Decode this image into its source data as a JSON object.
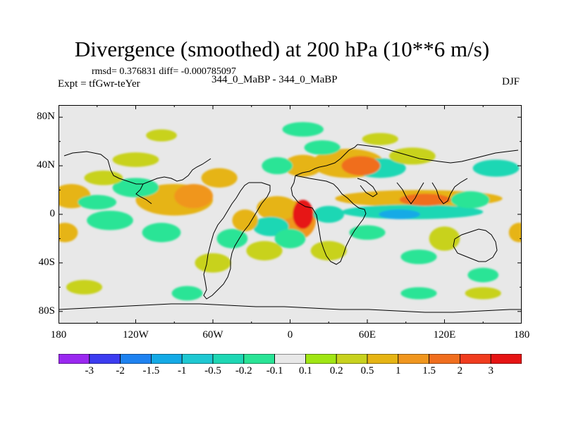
{
  "title": "Divergence (smoothed) at 200 hPa (10**6 m/s)",
  "stats": "rmsd= 0.376831 diff= -0.000785097",
  "expt": "Expt = tfGwr-teYer",
  "case": "344_0_MaBP - 344_0_MaBP",
  "season": "DJF",
  "chart_data": {
    "type": "heatmap",
    "title": "Divergence (smoothed) at 200 hPa (10**6 m/s)",
    "subtitle": "344_0_MaBP - 344_0_MaBP",
    "x_range": [
      -180,
      180
    ],
    "y_range": [
      -90,
      90
    ],
    "x_ticks": [
      {
        "value": -180,
        "label": "180"
      },
      {
        "value": -120,
        "label": "120W"
      },
      {
        "value": -60,
        "label": "60W"
      },
      {
        "value": 0,
        "label": "0"
      },
      {
        "value": 60,
        "label": "60E"
      },
      {
        "value": 120,
        "label": "120E"
      },
      {
        "value": 180,
        "label": "180"
      }
    ],
    "y_ticks": [
      {
        "value": 80,
        "label": "80N"
      },
      {
        "value": 40,
        "label": "40N"
      },
      {
        "value": 0,
        "label": "0"
      },
      {
        "value": -40,
        "label": "40S"
      },
      {
        "value": -80,
        "label": "80S"
      }
    ],
    "levels": [
      "-3",
      "-2",
      "-1.5",
      "-1",
      "-0.5",
      "-0.2",
      "-0.1",
      "0.1",
      "0.2",
      "0.5",
      "1",
      "1.5",
      "2",
      "3"
    ],
    "level_colors": [
      "#9a28f0",
      "#3c3cf0",
      "#1e82f0",
      "#14aae6",
      "#1ec8d2",
      "#1ed7b4",
      "#2ae496",
      "#e8e8e8",
      "#a0e614",
      "#c8d21e",
      "#e6b414",
      "#f0961e",
      "#f06e1e",
      "#f03c1e",
      "#e61414"
    ],
    "features": [
      {
        "lon": 10,
        "lat": 0,
        "value": 3,
        "rx": 8,
        "ry": 12
      },
      {
        "lon": 5,
        "lat": -5,
        "value": 1.2,
        "rx": 15,
        "ry": 16
      },
      {
        "lon": -10,
        "lat": 5,
        "value": 0.6,
        "rx": 16,
        "ry": 10
      },
      {
        "lon": -75,
        "lat": 15,
        "value": 1.2,
        "rx": 15,
        "ry": 10
      },
      {
        "lon": -90,
        "lat": 12,
        "value": 0.5,
        "rx": 30,
        "ry": 13
      },
      {
        "lon": -170,
        "lat": 15,
        "value": 0.6,
        "rx": 15,
        "ry": 10
      },
      {
        "lon": 105,
        "lat": 12,
        "value": 1.5,
        "rx": 20,
        "ry": 5
      },
      {
        "lon": 100,
        "lat": 13,
        "value": 0.5,
        "rx": 65,
        "ry": 7
      },
      {
        "lon": 55,
        "lat": 40,
        "value": 1.5,
        "rx": 15,
        "ry": 8
      },
      {
        "lon": 45,
        "lat": 42,
        "value": 0.5,
        "rx": 28,
        "ry": 12
      },
      {
        "lon": 10,
        "lat": 40,
        "value": 0.5,
        "rx": 15,
        "ry": 9
      },
      {
        "lon": -55,
        "lat": 30,
        "value": 0.5,
        "rx": 14,
        "ry": 8
      },
      {
        "lon": -35,
        "lat": -5,
        "value": 0.5,
        "rx": 10,
        "ry": 9
      },
      {
        "lon": -175,
        "lat": -15,
        "value": 0.5,
        "rx": 10,
        "ry": 8
      },
      {
        "lon": 178,
        "lat": -15,
        "value": 0.5,
        "rx": 8,
        "ry": 8
      },
      {
        "lon": 120,
        "lat": -20,
        "value": 0.2,
        "rx": 12,
        "ry": 10
      },
      {
        "lon": 95,
        "lat": 48,
        "value": 0.2,
        "rx": 18,
        "ry": 7
      },
      {
        "lon": -145,
        "lat": 30,
        "value": 0.2,
        "rx": 15,
        "ry": 6
      },
      {
        "lon": -120,
        "lat": 45,
        "value": 0.2,
        "rx": 18,
        "ry": 6
      },
      {
        "lon": -60,
        "lat": -40,
        "value": 0.2,
        "rx": 14,
        "ry": 8
      },
      {
        "lon": -20,
        "lat": -30,
        "value": 0.2,
        "rx": 14,
        "ry": 8
      },
      {
        "lon": 30,
        "lat": -30,
        "value": 0.2,
        "rx": 14,
        "ry": 8
      },
      {
        "lon": 70,
        "lat": 62,
        "value": 0.2,
        "rx": 14,
        "ry": 5
      },
      {
        "lon": 150,
        "lat": -65,
        "value": 0.2,
        "rx": 14,
        "ry": 5
      },
      {
        "lon": -160,
        "lat": -60,
        "value": 0.2,
        "rx": 14,
        "ry": 6
      },
      {
        "lon": -100,
        "lat": 65,
        "value": 0.2,
        "rx": 12,
        "ry": 5
      },
      {
        "lon": 85,
        "lat": 0,
        "value": -1.5,
        "rx": 16,
        "ry": 4
      },
      {
        "lon": 95,
        "lat": 2,
        "value": -0.5,
        "rx": 55,
        "ry": 6
      },
      {
        "lon": 70,
        "lat": 38,
        "value": -0.5,
        "rx": 20,
        "ry": 8
      },
      {
        "lon": 160,
        "lat": 38,
        "value": -0.5,
        "rx": 18,
        "ry": 7
      },
      {
        "lon": -15,
        "lat": -10,
        "value": -0.5,
        "rx": 14,
        "ry": 8
      },
      {
        "lon": 30,
        "lat": 0,
        "value": -0.5,
        "rx": 12,
        "ry": 7
      },
      {
        "lon": -120,
        "lat": 22,
        "value": -0.2,
        "rx": 18,
        "ry": 8
      },
      {
        "lon": 140,
        "lat": 12,
        "value": -0.2,
        "rx": 15,
        "ry": 7
      },
      {
        "lon": -140,
        "lat": -5,
        "value": -0.2,
        "rx": 18,
        "ry": 8
      },
      {
        "lon": -150,
        "lat": 10,
        "value": -0.2,
        "rx": 15,
        "ry": 6
      },
      {
        "lon": -100,
        "lat": -15,
        "value": -0.2,
        "rx": 15,
        "ry": 8
      },
      {
        "lon": -45,
        "lat": -20,
        "value": -0.2,
        "rx": 12,
        "ry": 8
      },
      {
        "lon": 60,
        "lat": -15,
        "value": -0.2,
        "rx": 14,
        "ry": 6
      },
      {
        "lon": 100,
        "lat": -35,
        "value": -0.2,
        "rx": 14,
        "ry": 6
      },
      {
        "lon": 0,
        "lat": -20,
        "value": -0.2,
        "rx": 12,
        "ry": 8
      },
      {
        "lon": -80,
        "lat": -65,
        "value": -0.2,
        "rx": 12,
        "ry": 6
      },
      {
        "lon": 10,
        "lat": 70,
        "value": -0.2,
        "rx": 16,
        "ry": 6
      },
      {
        "lon": 150,
        "lat": -50,
        "value": -0.2,
        "rx": 12,
        "ry": 6
      },
      {
        "lon": 100,
        "lat": -65,
        "value": -0.2,
        "rx": 14,
        "ry": 5
      },
      {
        "lon": -10,
        "lat": 40,
        "value": -0.2,
        "rx": 12,
        "ry": 7
      },
      {
        "lon": 25,
        "lat": 55,
        "value": -0.2,
        "rx": 14,
        "ry": 6
      }
    ]
  }
}
